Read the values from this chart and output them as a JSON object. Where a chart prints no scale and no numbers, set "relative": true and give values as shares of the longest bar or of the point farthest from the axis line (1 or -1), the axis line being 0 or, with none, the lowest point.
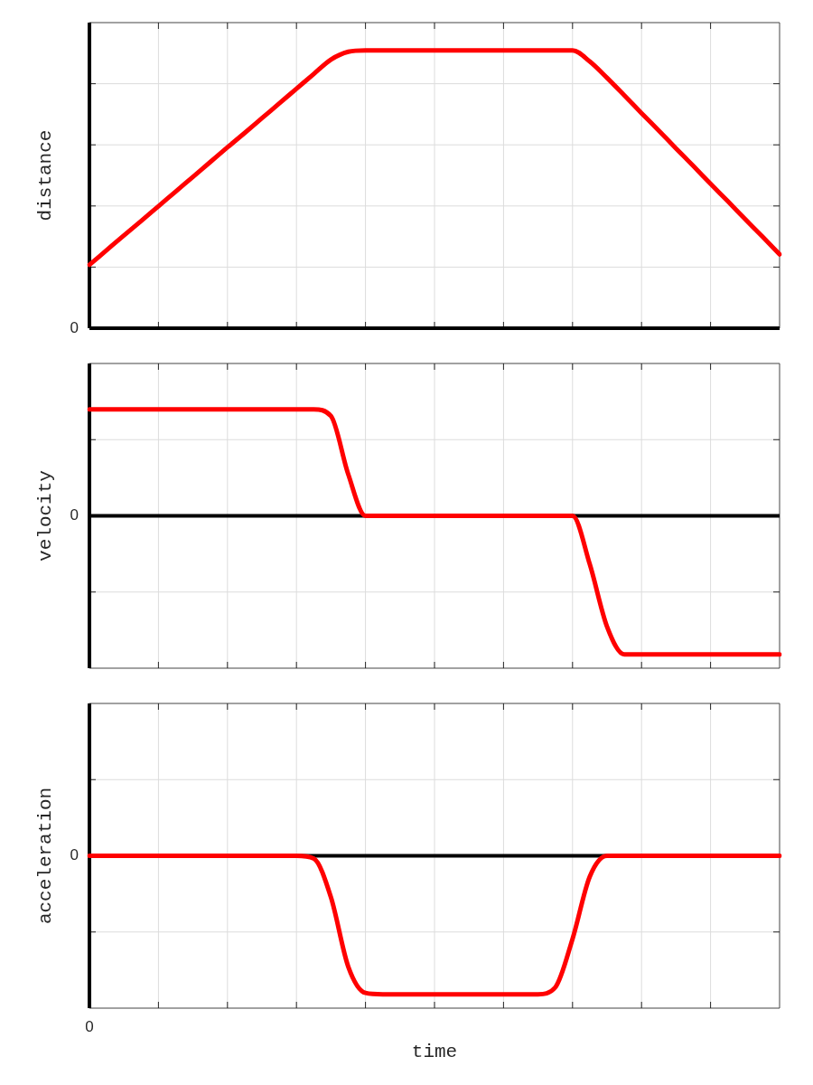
{
  "chart_data": [
    {
      "type": "line",
      "relative": true,
      "ylabel": "distance",
      "grid": true,
      "annotations": [
        "0"
      ],
      "categories": [
        null,
        null,
        null,
        null,
        null,
        null,
        null,
        null,
        null,
        null,
        null,
        null,
        null,
        null,
        null,
        null,
        null,
        null,
        null,
        null,
        null,
        null,
        null,
        null,
        null,
        null,
        null,
        null,
        null,
        null,
        null,
        null,
        null,
        null,
        null,
        null,
        null,
        null,
        null,
        null,
        null
      ],
      "series": [
        {
          "color": "#ff0000",
          "values": [
            0.228,
            0.281,
            0.334,
            0.386,
            0.439,
            0.492,
            0.545,
            0.598,
            0.651,
            0.703,
            0.756,
            0.809,
            0.862,
            0.915,
            0.967,
            0.995,
            1,
            1,
            1,
            1,
            1,
            1,
            1,
            1,
            1,
            1,
            1,
            1,
            1,
            0.96,
            0.901,
            0.838,
            0.774,
            0.711,
            0.647,
            0.584,
            0.52,
            0.457,
            0.393,
            0.33,
            0.266
          ]
        }
      ]
    },
    {
      "type": "line",
      "relative": true,
      "ylabel": "velocity",
      "grid": true,
      "annotations": [
        "0"
      ],
      "categories": [
        null,
        null,
        null,
        null,
        null,
        null,
        null,
        null,
        null,
        null,
        null,
        null,
        null,
        null,
        null,
        null,
        null,
        null,
        null,
        null,
        null,
        null,
        null,
        null,
        null,
        null,
        null,
        null,
        null,
        null,
        null,
        null,
        null,
        null,
        null,
        null,
        null,
        null,
        null,
        null,
        null
      ],
      "series": [
        {
          "color": "#ff0000",
          "values": [
            0.768,
            0.768,
            0.768,
            0.768,
            0.768,
            0.768,
            0.768,
            0.768,
            0.768,
            0.768,
            0.768,
            0.768,
            0.768,
            0.768,
            0.72,
            0.3,
            0,
            0,
            0,
            0,
            0,
            0,
            0,
            0,
            0,
            0,
            0,
            0,
            0,
            -0.35,
            -0.8,
            -1,
            -1,
            -1,
            -1,
            -1,
            -1,
            -1,
            -1,
            -1,
            -1
          ]
        }
      ]
    },
    {
      "type": "line",
      "relative": true,
      "ylabel": "acceleration",
      "xlabel": "time",
      "grid": true,
      "annotations": [
        "0",
        "0"
      ],
      "categories": [
        null,
        null,
        null,
        null,
        null,
        null,
        null,
        null,
        null,
        null,
        null,
        null,
        null,
        null,
        null,
        null,
        null,
        null,
        null,
        null,
        null,
        null,
        null,
        null,
        null,
        null,
        null,
        null,
        null,
        null,
        null,
        null,
        null,
        null,
        null,
        null,
        null,
        null,
        null,
        null,
        null
      ],
      "series": [
        {
          "color": "#ff0000",
          "values": [
            0,
            0,
            0,
            0,
            0,
            0,
            0,
            0,
            0,
            0,
            0,
            0,
            0,
            -0.02,
            -0.3,
            -0.8,
            -0.99,
            -1,
            -1,
            -1,
            -1,
            -1,
            -1,
            -1,
            -1,
            -1,
            -1,
            -0.95,
            -0.6,
            -0.15,
            0,
            0,
            0,
            0,
            0,
            0,
            0,
            0,
            0,
            0,
            0
          ]
        }
      ]
    }
  ]
}
